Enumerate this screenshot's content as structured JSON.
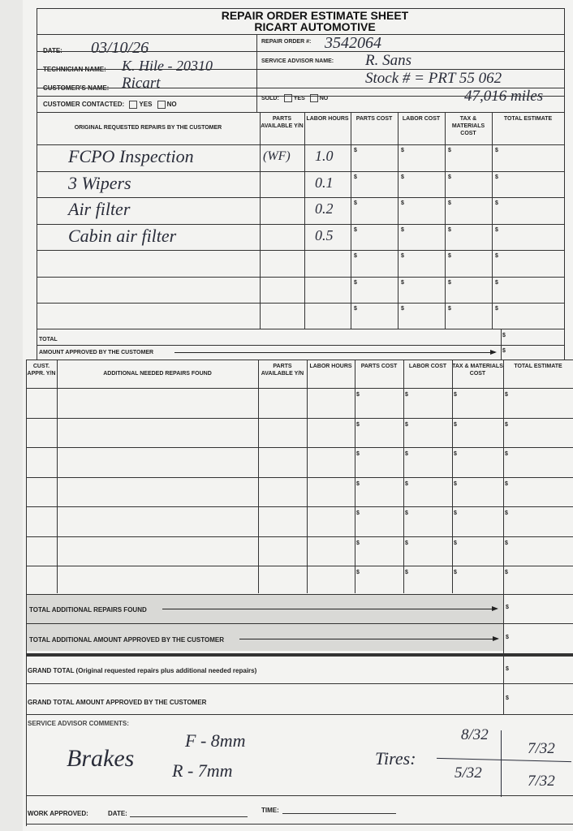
{
  "header": {
    "title": "REPAIR ORDER ESTIMATE SHEET",
    "company": "RICART AUTOMOTIVE"
  },
  "fields": {
    "date_label": "DATE:",
    "date_value": "03/10/26",
    "repair_order_label": "REPAIR ORDER #:",
    "repair_order_value": "3542064",
    "technician_label": "TECHNICIAN NAME:",
    "technician_value": "K. Hile - 20310",
    "advisor_label": "SERVICE ADVISOR NAME:",
    "advisor_value": "R. Sans",
    "customer_label": "CUSTOMER'S NAME:",
    "customer_value": "Ricart",
    "stock_value": "Stock # = PRT 55 062",
    "mileage_value": "47,016 miles",
    "contacted_label": "CUSTOMER CONTACTED:",
    "yes": "YES",
    "no": "NO",
    "sold_label": "SOLD:"
  },
  "original": {
    "headers": [
      "ORIGINAL REQUESTED REPAIRS BY THE CUSTOMER",
      "PARTS AVAILABLE Y/N",
      "LABOR HOURS",
      "PARTS COST",
      "LABOR COST",
      "TAX & MATERIALS COST",
      "TOTAL ESTIMATE"
    ],
    "rows": [
      {
        "repair": "FCPO Inspection",
        "parts": "(WF)",
        "hours": "1.0"
      },
      {
        "repair": "3 Wipers",
        "parts": "",
        "hours": "0.1"
      },
      {
        "repair": "Air filter",
        "parts": "",
        "hours": "0.2"
      },
      {
        "repair": "Cabin air filter",
        "parts": "",
        "hours": "0.5"
      },
      {
        "repair": "",
        "parts": "",
        "hours": ""
      },
      {
        "repair": "",
        "parts": "",
        "hours": ""
      },
      {
        "repair": "",
        "parts": "",
        "hours": ""
      }
    ],
    "total_label": "TOTAL",
    "approved_label": "AMOUNT APPROVED BY THE CUSTOMER"
  },
  "additional": {
    "headers": [
      "CUST. APPR. Y/N",
      "ADDITIONAL NEEDED REPAIRS FOUND",
      "PARTS AVAILABLE Y/N",
      "LABOR HOURS",
      "PARTS COST",
      "LABOR COST",
      "TAX & MATERIALS COST",
      "TOTAL ESTIMATE"
    ],
    "row_count_rows": [
      "",
      "",
      "",
      "",
      "",
      "",
      ""
    ]
  },
  "totals": {
    "additional_found": "TOTAL ADDITIONAL REPAIRS FOUND",
    "additional_approved": "TOTAL ADDITIONAL AMOUNT APPROVED BY THE CUSTOMER",
    "grand_total": "GRAND TOTAL (Original requested repairs plus additional needed repairs)",
    "grand_approved": "GRAND TOTAL AMOUNT APPROVED BY THE CUSTOMER"
  },
  "comments": {
    "label": "SERVICE ADVISOR COMMENTS:",
    "brakes": "Brakes",
    "brake_front": "F - 8mm",
    "brake_rear": "R - 7mm",
    "tires": "Tires:",
    "tire_lf": "8/32",
    "tire_rf": "7/32",
    "tire_lr": "5/32",
    "tire_rr": "7/32"
  },
  "footer": {
    "work_approved": "WORK APPROVED:",
    "date": "DATE:",
    "time": "TIME:"
  },
  "currency_symbol": "$"
}
